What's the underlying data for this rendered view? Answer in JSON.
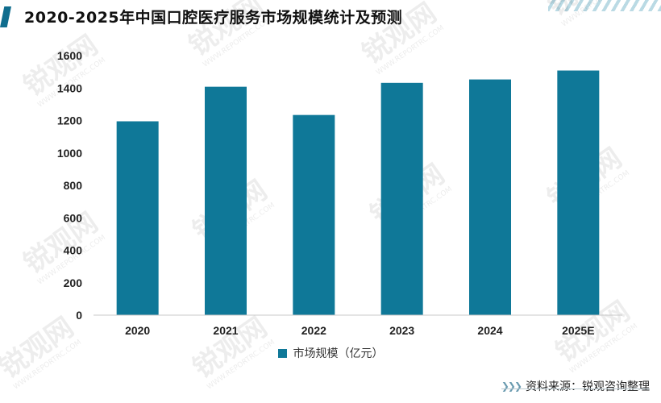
{
  "title": "2020-2025年中国口腔医疗服务市场规模统计及预测",
  "source": "资料来源：锐观咨询整理",
  "watermark_text": "锐观网 WWW.REPORTRC.COM",
  "colors": {
    "bar": "#0f7898",
    "accent": "#0f6d8e"
  },
  "chart_data": {
    "type": "bar",
    "categories": [
      "2020",
      "2021",
      "2022",
      "2023",
      "2024",
      "2025E"
    ],
    "series": [
      {
        "name": "市场规模（亿元）",
        "values": [
          1195,
          1408,
          1234,
          1432,
          1453,
          1508
        ]
      }
    ],
    "title": "2020-2025年中国口腔医疗服务市场规模统计及预测",
    "xlabel": "",
    "ylabel": "",
    "ylim": [
      0,
      1600
    ],
    "yticks": [
      0,
      200,
      400,
      600,
      800,
      1000,
      1200,
      1400,
      1600
    ],
    "grid": false,
    "legend_position": "bottom"
  }
}
